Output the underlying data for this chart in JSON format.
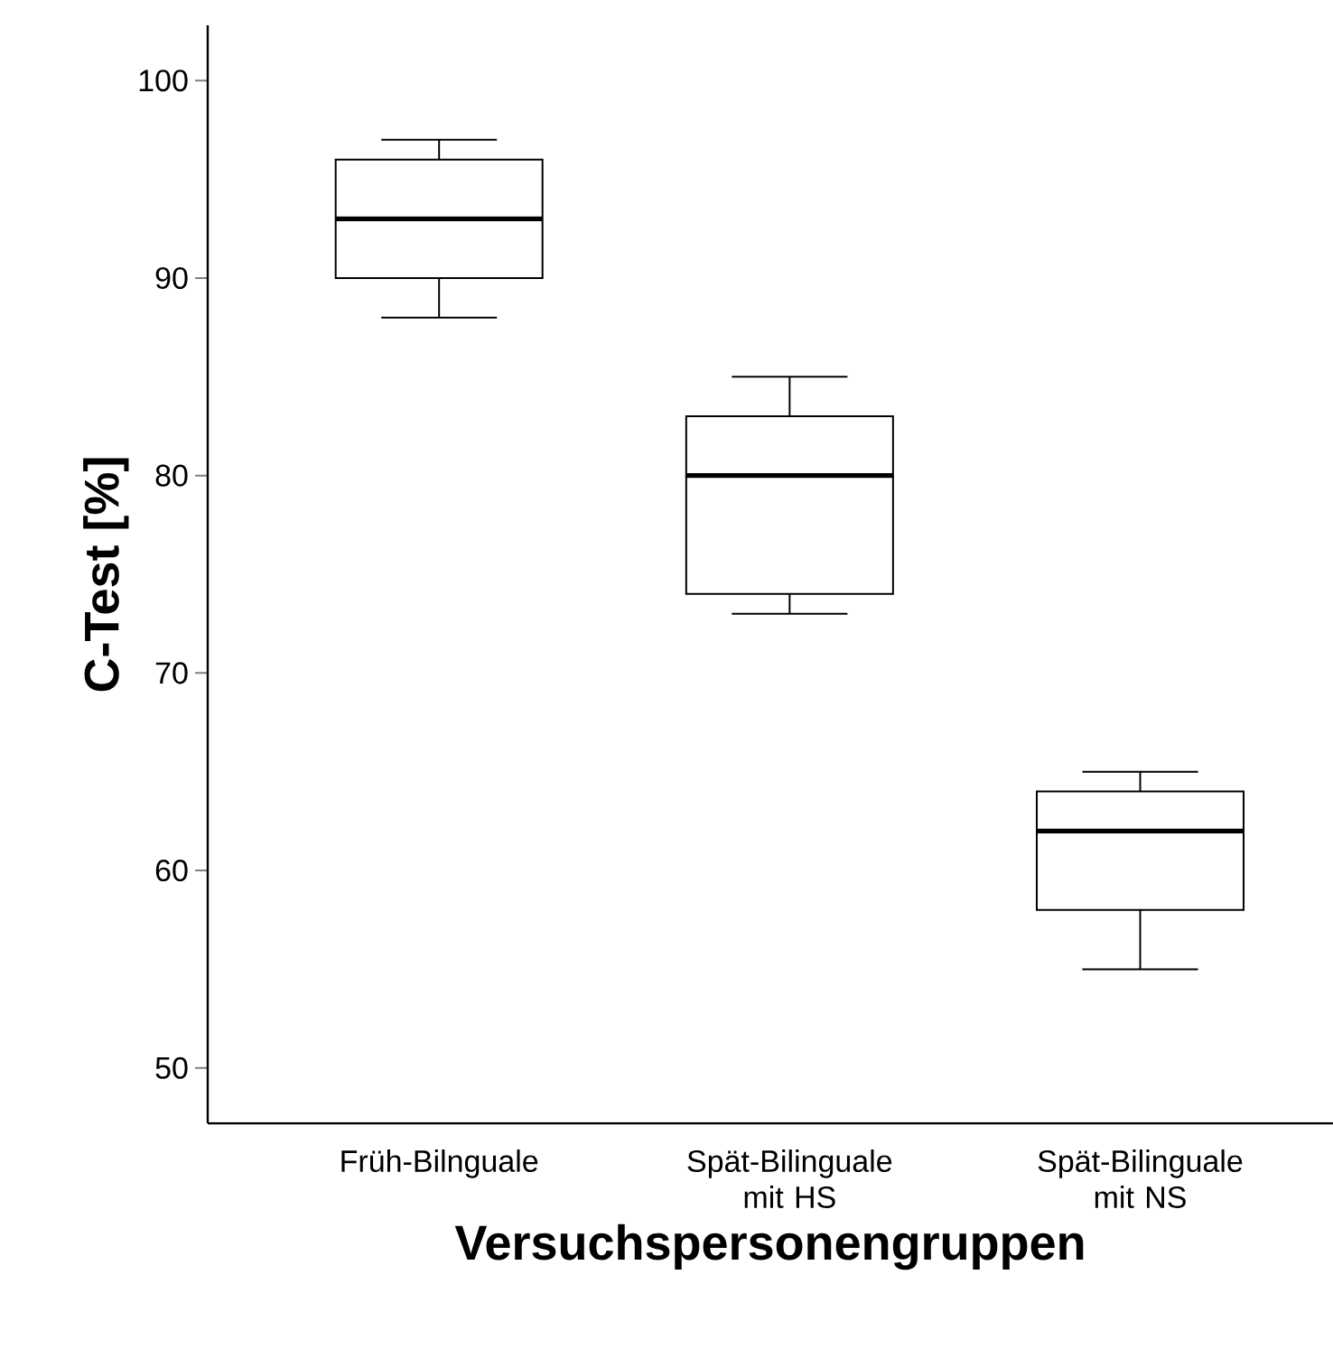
{
  "chart_data": {
    "type": "box",
    "xlabel": "Versuchspersonengruppen",
    "ylabel": "C-Test [%]",
    "categories": [
      "Früh-Bilnguale",
      "Spät-Bilinguale mit HS",
      "Spät-Bilinguale mit NS"
    ],
    "boxes": [
      {
        "low": 88,
        "q1": 90,
        "median": 93,
        "q3": 96,
        "high": 97
      },
      {
        "low": 73,
        "q1": 74,
        "median": 80,
        "q3": 83,
        "high": 85
      },
      {
        "low": 55,
        "q1": 58,
        "median": 62,
        "q3": 64,
        "high": 65
      }
    ],
    "color": "#ffffff",
    "ylim": [
      47.2,
      102.8
    ],
    "yticks": [
      50,
      60,
      70,
      80,
      90,
      100
    ]
  }
}
